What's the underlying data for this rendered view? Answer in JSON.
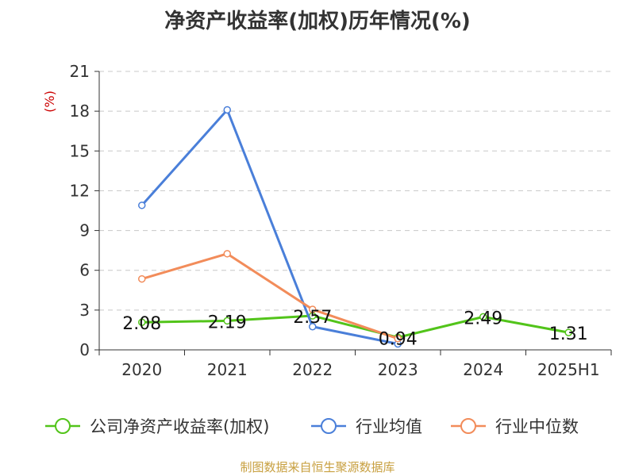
{
  "title": "净资产收益率(加权)历年情况(%)",
  "source": "制图数据来自恒生聚源数据库",
  "chart_data": {
    "type": "line",
    "title": "净资产收益率(加权)历年情况(%)",
    "ylabel": "(%)",
    "categories": [
      "2020",
      "2021",
      "2022",
      "2023",
      "2024",
      "2025H1"
    ],
    "ylim": [
      0,
      21
    ],
    "yticks": [
      0,
      3,
      6,
      9,
      12,
      15,
      18,
      21
    ],
    "grid": true,
    "legend_position": "bottom",
    "series": [
      {
        "name": "公司净资产收益率(加权)",
        "color": "#52c41a",
        "values": [
          2.08,
          2.19,
          2.57,
          0.94,
          2.49,
          1.31
        ],
        "labels": [
          "2.08",
          "2.19",
          "2.57",
          "0.94",
          "2.49",
          "1.31"
        ]
      },
      {
        "name": "行业均值",
        "color": "#4a7fd9",
        "values": [
          10.9,
          18.1,
          1.75,
          0.45,
          null,
          null
        ]
      },
      {
        "name": "行业中位数",
        "color": "#f28c5a",
        "values": [
          5.35,
          7.25,
          3.05,
          0.85,
          null,
          null
        ]
      }
    ]
  }
}
